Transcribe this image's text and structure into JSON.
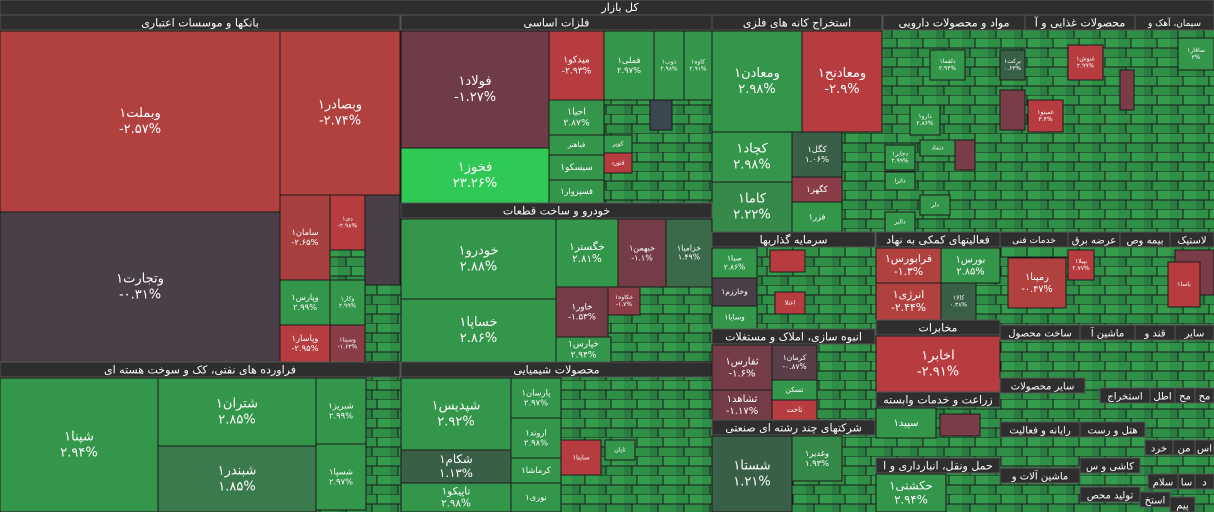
{
  "title": "کل بازار",
  "sectors": [
    {
      "name": "بانکها و موسسات اعتباری",
      "tiles": [
        {
          "name": "وبملت۱",
          "change": "-۲.۵۷%",
          "color": "#b0413f"
        },
        {
          "name": "وتجارت۱",
          "change": "-۰.۳۱%",
          "color": "#4a3f48"
        },
        {
          "name": "وبصادر۱",
          "change": "-۲.۷۴%",
          "color": "#b0413f"
        },
        {
          "name": "سامان۱",
          "change": "-۲.۶۵%",
          "color": "#a8403f"
        },
        {
          "name": "دی۱",
          "change": "-۲.۹۸%",
          "color": "#b63c40"
        },
        {
          "name": "وپارس۱",
          "change": "۲.۹۹%",
          "color": "#33964a"
        },
        {
          "name": "وکار۱",
          "change": "۲.۹۹%",
          "color": "#33964a"
        },
        {
          "name": "وپاسار۱",
          "change": "-۲.۹۵%",
          "color": "#b63c40"
        },
        {
          "name": "وسینا۱",
          "change": "-۱.۶۳%",
          "color": "#8a3d47"
        }
      ]
    },
    {
      "name": "فراورده های نفتی، کک و سوخت هسته ای",
      "tiles": [
        {
          "name": "شپنا۱",
          "change": "۲.۹۴%",
          "color": "#33964a"
        },
        {
          "name": "شتران۱",
          "change": "۲.۸۵%",
          "color": "#33964a"
        },
        {
          "name": "شبندر۱",
          "change": "۱.۸۵%",
          "color": "#3b7a4c"
        },
        {
          "name": "شبریز۱",
          "change": "۲.۹۹%",
          "color": "#33964a"
        },
        {
          "name": "شسپا۱",
          "change": "۲.۹۷%",
          "color": "#33964a"
        }
      ]
    },
    {
      "name": "فلزات اساسی",
      "tiles": [
        {
          "name": "فولاد۱",
          "change": "-۱.۲۷%",
          "color": "#6f3b47"
        },
        {
          "name": "فخوز۱",
          "change": "۲۳.۲۶%",
          "color": "#30c955"
        },
        {
          "name": "میدکو۱",
          "change": "-۲.۹۳%",
          "color": "#b63c40"
        },
        {
          "name": "فملی۱",
          "change": "۲.۹۷%",
          "color": "#33964a"
        },
        {
          "name": "ذوب۱",
          "change": "۲.۹۸%",
          "color": "#33964a"
        },
        {
          "name": "کاوه۱",
          "change": "۲.۹۱%",
          "color": "#33964a"
        },
        {
          "name": "احیا۱",
          "change": "۲.۸۷%",
          "color": "#33964a"
        },
        {
          "name": "فباهنر",
          "color": "#33964a"
        },
        {
          "name": "سیسکو۱",
          "color": "#33964a"
        },
        {
          "name": "فسپزوار۱",
          "color": "#33964a"
        },
        {
          "name": "کویر",
          "color": "#33964a"
        },
        {
          "name": "فنورد",
          "color": "#b63c40"
        }
      ]
    },
    {
      "name": "استخراج کانه های فلزی",
      "tiles": [
        {
          "name": "ومعادن۱",
          "change": "۲.۹۸%",
          "color": "#33964a"
        },
        {
          "name": "ومعادنح۱",
          "change": "-۲.۹%",
          "color": "#b63c40"
        },
        {
          "name": "کچاد۱",
          "change": "۲.۹۸%",
          "color": "#33964a"
        },
        {
          "name": "کاما۱",
          "change": "۲.۲۲%",
          "color": "#358a4a"
        },
        {
          "name": "کگل۱",
          "change": "۱.۰۶%",
          "color": "#3a5f47"
        },
        {
          "name": "کگهر۱",
          "color": "#8a3d47"
        },
        {
          "name": "فزر۱",
          "color": "#33964a"
        }
      ]
    },
    {
      "name": "مواد و محصولات دارویی",
      "tiles": [
        {
          "name": "برکت۱",
          "change": "۰.۶۳%",
          "color": "#3a5f47"
        },
        {
          "name": "دلقما۱",
          "change": "۲.۹۴%",
          "color": "#33964a"
        },
        {
          "name": "دارو۱",
          "change": "۲.۸۶%",
          "color": "#33964a"
        },
        {
          "name": "دجابر۱",
          "change": "۲.۹۹%",
          "color": "#33964a"
        },
        {
          "name": "دتماد",
          "color": "#33964a"
        },
        {
          "name": "داترا",
          "color": "#33964a"
        },
        {
          "name": "دلر",
          "color": "#33964a"
        },
        {
          "name": "دالبر",
          "color": "#33964a"
        }
      ]
    },
    {
      "name": "محصولات غذایی و آ",
      "tiles": [
        {
          "name": "غنوش۱",
          "change": "۲.۹۹%",
          "color": "#b63c40"
        },
        {
          "name": "غمینو۱",
          "change": "۳.۴%",
          "color": "#b63c40"
        }
      ]
    },
    {
      "name": "سیمان، آهک و",
      "tiles": [
        {
          "name": "ساقار۱",
          "change": "۳%",
          "color": "#33964a"
        }
      ]
    },
    {
      "name": "خودرو و ساخت قطعات",
      "tiles": [
        {
          "name": "خودرو۱",
          "change": "۲.۸۸%",
          "color": "#33964a"
        },
        {
          "name": "خساپا۱",
          "change": "۲.۸۶%",
          "color": "#33964a"
        },
        {
          "name": "خگستر۱",
          "change": "۲.۸۱%",
          "color": "#33964a"
        },
        {
          "name": "خبهمن۱",
          "change": "-۱.۱%",
          "color": "#733c47"
        },
        {
          "name": "خزامیا۱",
          "change": "۱.۴۹%",
          "color": "#3b6a4b"
        },
        {
          "name": "خاور۱",
          "change": "-۱.۵۳%",
          "color": "#733c47"
        },
        {
          "name": "خکاوه۱",
          "change": "-۱.۷%",
          "color": "#8a3d47"
        },
        {
          "name": "خپارس۱",
          "change": "۲.۹۴%",
          "color": "#33964a"
        }
      ]
    },
    {
      "name": "محصولات شیمیایی",
      "tiles": [
        {
          "name": "شپدیس۱",
          "change": "۲.۹۲%",
          "color": "#33964a"
        },
        {
          "name": "شکام۱",
          "change": "۱.۱۳%",
          "color": "#3a5f47"
        },
        {
          "name": "تاپیکو۱",
          "change": "۲.۹۸%",
          "color": "#33964a"
        },
        {
          "name": "پارسان۱",
          "change": "۲.۹۷%",
          "color": "#33964a"
        },
        {
          "name": "اروند۱",
          "change": "۲.۹۸%",
          "color": "#33964a"
        },
        {
          "name": "کرماشا۱",
          "color": "#33964a"
        },
        {
          "name": "نوری۱",
          "color": "#33964a"
        },
        {
          "name": "ساینا۱",
          "color": "#b63c40"
        },
        {
          "name": "تاپان",
          "color": "#33964a"
        }
      ]
    },
    {
      "name": "سرمایه گذاریها",
      "tiles": [
        {
          "name": "صبا۱",
          "change": "۲.۸۶%",
          "color": "#33964a"
        },
        {
          "name": "وخارزم۱",
          "color": "#4a3f48"
        },
        {
          "name": "وسایا۱",
          "color": "#33964a"
        },
        {
          "name": "اعتلا",
          "color": "#b63c40"
        }
      ]
    },
    {
      "name": "انبوه سازی، املاک و مستغلات",
      "tiles": [
        {
          "name": "ثفارس۱",
          "change": "-۱.۶%",
          "color": "#733c47"
        },
        {
          "name": "کرمان۱",
          "change": "-۰.۸۷%",
          "color": "#5a3d47"
        },
        {
          "name": "ثشاهد۱",
          "change": "-۱.۱۷%",
          "color": "#733c47"
        },
        {
          "name": "تسکن",
          "color": "#33964a"
        },
        {
          "name": "ثاخت",
          "color": "#b63c40"
        }
      ]
    },
    {
      "name": "شرکتهای چند رشته ای صنعتی",
      "tiles": [
        {
          "name": "شستا۱",
          "change": "۱.۲۱%",
          "color": "#3a5f47"
        },
        {
          "name": "وغدیر۱",
          "change": "۱.۹۳%",
          "color": "#358a4a"
        }
      ]
    },
    {
      "name": "فعالیتهای کمکی به نهاد",
      "tiles": [
        {
          "name": "فرابورس۱",
          "change": "-۱.۳%",
          "color": "#b0413f"
        },
        {
          "name": "بورس۱",
          "change": "۲.۸۵%",
          "color": "#33964a"
        },
        {
          "name": "انرژی۱",
          "change": "-۲.۴۴%",
          "color": "#b0413f"
        },
        {
          "name": "کالا۱",
          "change": "۰.۳۸%",
          "color": "#3a5f47"
        }
      ]
    },
    {
      "name": "مخابرات",
      "tiles": [
        {
          "name": "اخابر۱",
          "change": "-۲.۹۱%",
          "color": "#b63c40"
        }
      ]
    },
    {
      "name": "زراعت و خدمات وابسته",
      "tiles": [
        {
          "name": "سپید۱",
          "color": "#33964a"
        }
      ]
    },
    {
      "name": "حمل ونقل، انبارداری و ا",
      "tiles": [
        {
          "name": "حکشتی۱",
          "change": "۲.۹۴%",
          "color": "#33964a"
        }
      ]
    },
    {
      "name": "خدمات فنی",
      "tiles": [
        {
          "name": "رمپنا۱",
          "change": "-۰.۴۷%",
          "color": "#b0413f"
        },
        {
          "name": "بپیلا۱",
          "change": "۲.۷۷%",
          "color": "#b63c40"
        },
        {
          "name": "باسا۱",
          "color": "#b63c40"
        }
      ]
    }
  ],
  "minor_sectors": [
    "لاستیک",
    "بیمه وص",
    "عرضه برق",
    "ساخت محصول",
    "ماشین آ",
    "قند و",
    "سایر",
    "سایر محصولات",
    "مح",
    "مح",
    "اطل",
    "استخراج",
    "هتل و رست",
    "رایانه و فعالیت",
    "خرد",
    "من",
    "اس",
    "کاشی و س",
    "ماشین آلات و",
    "سلام",
    "سا",
    "د",
    "تولید محص",
    "استخ",
    "پیم"
  ]
}
